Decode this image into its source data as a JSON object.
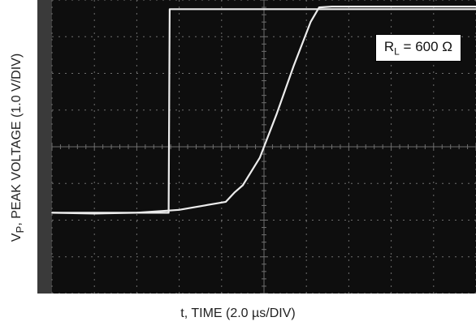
{
  "chart_data": {
    "type": "line",
    "title": "",
    "ylabel": "V",
    "ylabel_subscript": "P",
    "ylabel_rest": ", PEAK VOLTAGE (1.0 V/DIV)",
    "xlabel": "t, TIME (2.0 µs/DIV)",
    "annotation": {
      "prefix": "R",
      "subscript": "L",
      "suffix": " = 600 Ω"
    },
    "x_divisions": 10,
    "y_divisions": 8,
    "x_unit_per_div_us": 2.0,
    "y_unit_per_div_v": 1.0,
    "xlim": [
      0,
      20
    ],
    "ylim": [
      0,
      8
    ],
    "grid": true,
    "series": [
      {
        "x": [
          0,
          5.5,
          5.55,
          20
        ],
        "y": [
          2.2,
          2.2,
          7.75,
          7.75
        ]
      },
      {
        "x": [
          0,
          2.0,
          4.0,
          6.0,
          7.2,
          8.2,
          8.6,
          9.0,
          9.8,
          10.6,
          11.4,
          12.2,
          12.6,
          13.2,
          20
        ],
        "y": [
          2.2,
          2.18,
          2.2,
          2.28,
          2.4,
          2.5,
          2.75,
          2.95,
          3.7,
          4.9,
          6.2,
          7.4,
          7.8,
          7.82,
          7.82
        ]
      }
    ],
    "colors": {
      "screen": "#0e0e0e",
      "trace": "#ececec",
      "grid": "#6e6e6e"
    }
  }
}
